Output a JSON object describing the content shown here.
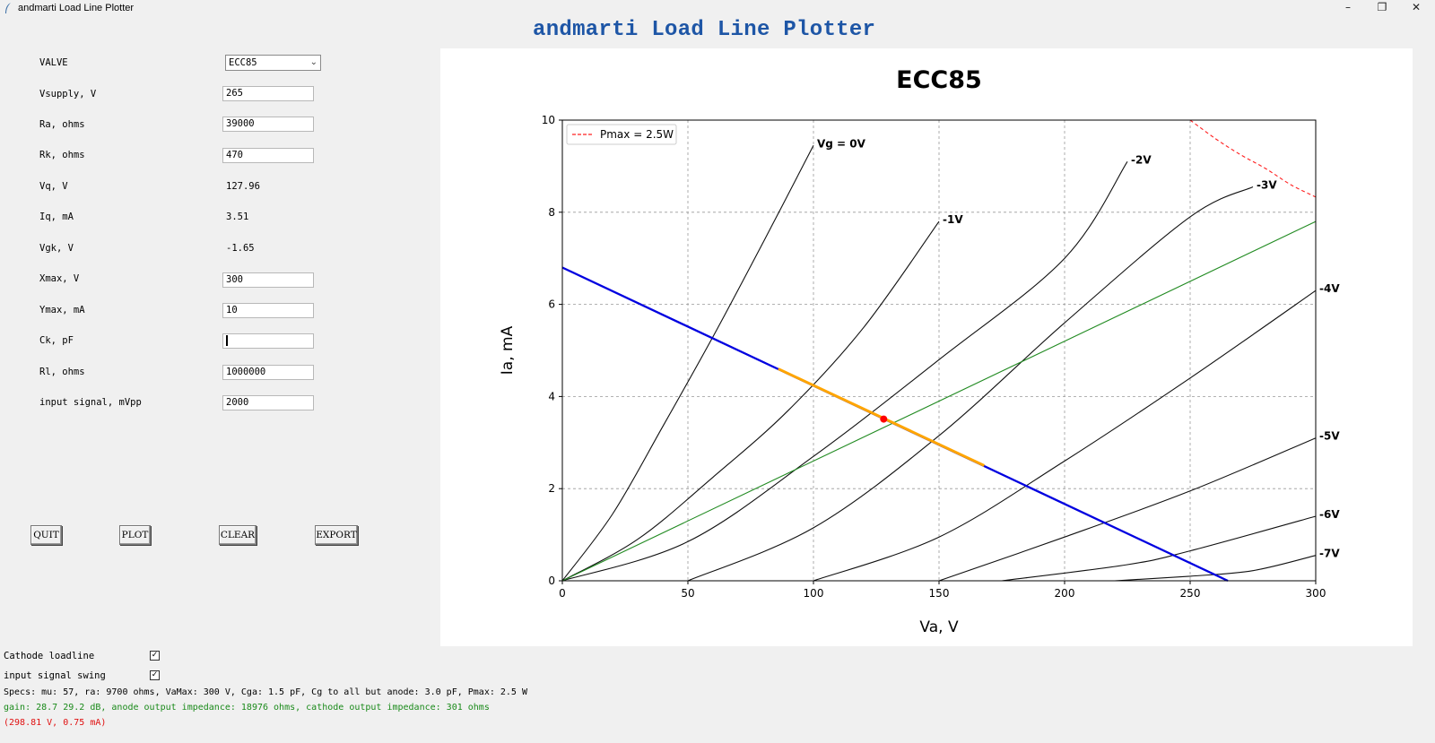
{
  "window": {
    "title": "andmarti Load Line Plotter",
    "minimize_glyph": "–",
    "restore_glyph": "❐",
    "close_glyph": "✕"
  },
  "heading": "andmarti Load Line Plotter",
  "form": {
    "valve": {
      "label": "VALVE",
      "value": "ECC85"
    },
    "vsupply": {
      "label": "Vsupply, V",
      "value": "265"
    },
    "ra": {
      "label": "Ra, ohms",
      "value": "39000"
    },
    "rk": {
      "label": "Rk, ohms",
      "value": "470"
    },
    "vq": {
      "label": "Vq, V",
      "value": "127.96"
    },
    "iq": {
      "label": "Iq, mA",
      "value": "3.51"
    },
    "vgk": {
      "label": "Vgk, V",
      "value": "-1.65"
    },
    "xmax": {
      "label": "Xmax, V",
      "value": "300"
    },
    "ymax": {
      "label": "Ymax, mA",
      "value": "10"
    },
    "ck": {
      "label": "Ck, pF",
      "value": ""
    },
    "rl": {
      "label": "Rl, ohms",
      "value": "1000000"
    },
    "input_signal": {
      "label": "input signal, mVpp",
      "value": "2000"
    }
  },
  "buttons": {
    "quit": "QUIT",
    "plot": "PLOT",
    "clear": "CLEAR",
    "export": "EXPORT"
  },
  "options": {
    "cathode_loadline": {
      "label": "Cathode loadline",
      "checked": true
    },
    "input_signal_swing": {
      "label": "input signal swing",
      "checked": true
    },
    "check_glyph": "✓"
  },
  "info": {
    "specs": "Specs: mu: 57, ra: 9700 ohms, VaMax: 300 V, Cga: 1.5 pF, Cg to all but anode: 3.0 pF, Pmax: 2.5 W",
    "gain": "gain: 28.7 29.2 dB, anode output impedance: 18976 ohms, cathode output impedance: 301 ohms",
    "cursor": "(298.81 V, 0.75 mA)"
  },
  "colors": {
    "heading": "#1e56a6",
    "load_line": "#0000e0",
    "signal_swing": "#ffa500",
    "cathode_line": "#228b22",
    "pmax": "#ff2020",
    "q_point": "#ff0000",
    "info_green": "#1a8a1a",
    "info_red": "#e01010"
  },
  "chart_data": {
    "type": "line",
    "title": "ECC85",
    "xlabel": "Va, V",
    "ylabel": "Ia, mA",
    "xlim": [
      0,
      300
    ],
    "ylim": [
      0,
      10
    ],
    "xticks": [
      0,
      50,
      100,
      150,
      200,
      250,
      300
    ],
    "yticks": [
      0,
      2,
      4,
      6,
      8,
      10
    ],
    "grid": true,
    "legend": {
      "position": "top-left",
      "entries": [
        {
          "label": "Pmax = 2.5W",
          "style": "dashed",
          "color": "#ff2020"
        }
      ]
    },
    "series": [
      {
        "name": "Vg = 0V",
        "kind": "grid-curve",
        "points": [
          [
            0,
            0
          ],
          [
            20,
            1.45
          ],
          [
            40,
            3.35
          ],
          [
            60,
            5.3
          ],
          [
            80,
            7.35
          ],
          [
            100,
            9.45
          ]
        ]
      },
      {
        "name": "-1V",
        "kind": "grid-curve",
        "points": [
          [
            0,
            0
          ],
          [
            30,
            0.9
          ],
          [
            60,
            2.25
          ],
          [
            90,
            3.7
          ],
          [
            120,
            5.5
          ],
          [
            150,
            7.8
          ]
        ]
      },
      {
        "name": "-2V",
        "kind": "grid-curve",
        "points": [
          [
            0,
            0
          ],
          [
            50,
            0.85
          ],
          [
            100,
            2.7
          ],
          [
            150,
            4.8
          ],
          [
            200,
            7.0
          ],
          [
            225,
            9.1
          ]
        ]
      },
      {
        "name": "-3V",
        "kind": "grid-curve",
        "points": [
          [
            50,
            0
          ],
          [
            100,
            1.15
          ],
          [
            150,
            3.15
          ],
          [
            200,
            5.6
          ],
          [
            250,
            7.9
          ],
          [
            275,
            8.55
          ]
        ]
      },
      {
        "name": "-4V",
        "kind": "grid-curve",
        "points": [
          [
            100,
            0
          ],
          [
            150,
            0.95
          ],
          [
            200,
            2.6
          ],
          [
            250,
            4.4
          ],
          [
            300,
            6.3
          ]
        ]
      },
      {
        "name": "-5V",
        "kind": "grid-curve",
        "points": [
          [
            150,
            0
          ],
          [
            200,
            0.95
          ],
          [
            250,
            1.95
          ],
          [
            300,
            3.1
          ]
        ]
      },
      {
        "name": "-6V",
        "kind": "grid-curve",
        "points": [
          [
            175,
            0
          ],
          [
            225,
            0.35
          ],
          [
            250,
            0.65
          ],
          [
            300,
            1.4
          ]
        ]
      },
      {
        "name": "-7V",
        "kind": "grid-curve",
        "points": [
          [
            220,
            0
          ],
          [
            250,
            0.1
          ],
          [
            275,
            0.22
          ],
          [
            300,
            0.55
          ]
        ]
      }
    ],
    "load_line": {
      "points": [
        [
          0,
          6.8
        ],
        [
          265,
          0
        ]
      ]
    },
    "signal_swing": {
      "points": [
        [
          86,
          4.6
        ],
        [
          168,
          2.5
        ]
      ]
    },
    "cathode_line": {
      "points": [
        [
          0,
          0
        ],
        [
          300,
          7.8
        ]
      ]
    },
    "pmax_curve": {
      "points": [
        [
          250,
          10
        ],
        [
          260,
          9.6
        ],
        [
          270,
          9.25
        ],
        [
          280,
          8.95
        ],
        [
          290,
          8.6
        ],
        [
          300,
          8.33
        ]
      ]
    },
    "q_point": {
      "x": 127.96,
      "y": 3.51
    }
  }
}
